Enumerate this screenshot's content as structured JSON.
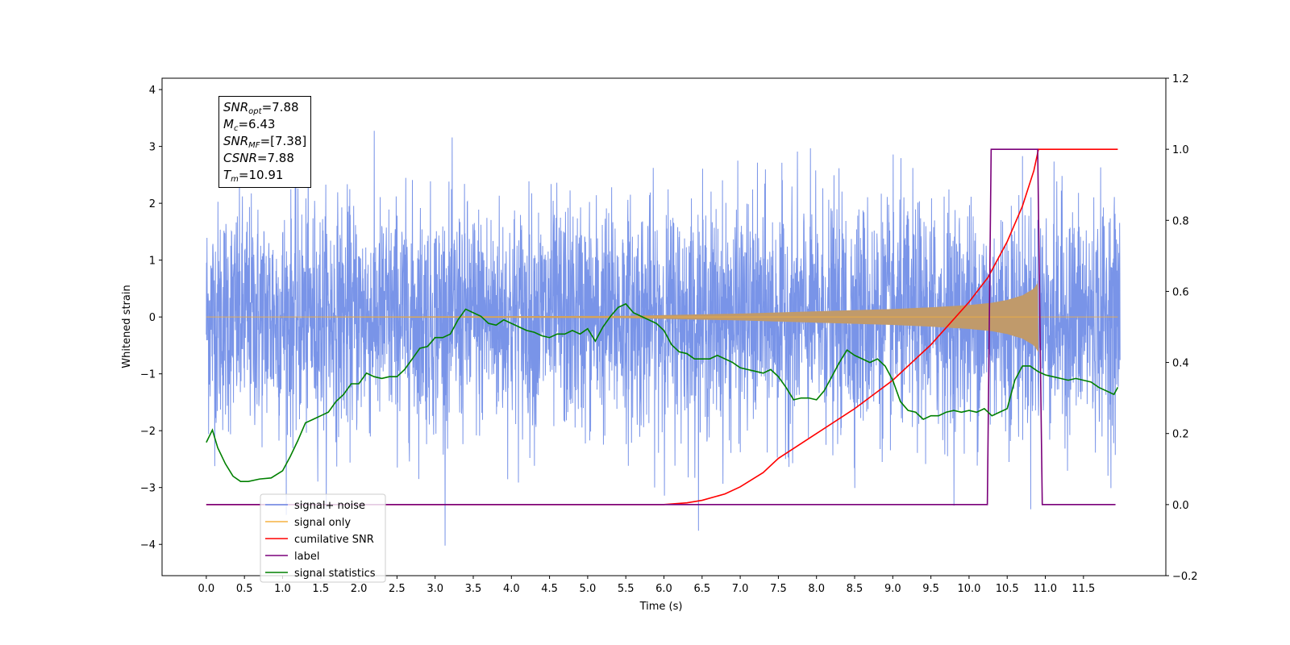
{
  "chart_data": {
    "type": "line",
    "xlabel": "Time (s)",
    "ylabel": "Whitened strain",
    "xlim": [
      -0.58,
      12.58
    ],
    "ylim": [
      -4.55,
      4.2
    ],
    "y2lim": [
      -0.2,
      1.2
    ],
    "x_ticks": [
      "0.0",
      "0.5",
      "1.0",
      "1.5",
      "2.0",
      "2.5",
      "3.0",
      "3.5",
      "4.0",
      "4.5",
      "5.0",
      "5.5",
      "6.0",
      "6.5",
      "7.0",
      "7.5",
      "8.0",
      "8.5",
      "9.0",
      "9.5",
      "10.0",
      "10.5",
      "11.0",
      "11.5"
    ],
    "y_ticks": [
      "4",
      "3",
      "2",
      "1",
      "0",
      "−1",
      "−2",
      "−3",
      "−4"
    ],
    "y2_ticks": [
      "1.2",
      "1.0",
      "0.8",
      "0.6",
      "0.4",
      "0.2",
      "0.0",
      "−0.2"
    ],
    "grid": false,
    "legend_position": "lower-left",
    "annotation": {
      "snr_opt_label": "SNR",
      "snr_opt_sub": "opt",
      "snr_opt_value": "=7.88",
      "mc_label": "M",
      "mc_sub": "c",
      "mc_value": "=6.43",
      "snr_mf_label": "SNR",
      "snr_mf_sub": "MF",
      "snr_mf_value": "=[7.38]",
      "csnr_label": "CSNR",
      "csnr_value": "=7.88",
      "tm_label": "T",
      "tm_sub": "m",
      "tm_value": "=10.91"
    },
    "series": [
      {
        "name": "signal+ noise",
        "axis": "left",
        "color": "#6a88e6",
        "description_values": "white noise, std 1.0, 0–12 s"
      },
      {
        "name": "signal only",
        "axis": "left",
        "color": "#f5b240",
        "envelope": {
          "x": [
            0,
            5.5,
            7.0,
            8.0,
            9.0,
            9.5,
            10.0,
            10.3,
            10.5,
            10.7,
            10.85,
            10.91
          ],
          "amp": [
            0.0,
            0.02,
            0.06,
            0.1,
            0.14,
            0.17,
            0.21,
            0.25,
            0.3,
            0.38,
            0.5,
            0.62
          ]
        }
      },
      {
        "name": "cumilative SNR",
        "axis": "right",
        "color": "#ff0000",
        "x": [
          0,
          6.0,
          6.3,
          6.5,
          6.8,
          7.0,
          7.3,
          7.5,
          8.0,
          8.5,
          9.0,
          9.5,
          10.0,
          10.25,
          10.5,
          10.7,
          10.85,
          10.91,
          11.0,
          11.95
        ],
        "values": [
          0,
          0,
          0.005,
          0.012,
          0.03,
          0.05,
          0.09,
          0.13,
          0.2,
          0.27,
          0.35,
          0.45,
          0.57,
          0.64,
          0.74,
          0.84,
          0.94,
          1.0,
          1.0,
          1.0
        ]
      },
      {
        "name": "label",
        "axis": "right",
        "color": "#7a007a",
        "x": [
          0,
          10.24,
          10.29,
          10.9,
          10.96,
          11.92
        ],
        "values": [
          0,
          0,
          1.0,
          1.0,
          0,
          0
        ]
      },
      {
        "name": "signal statistics",
        "axis": "right",
        "color": "#008000",
        "x": [
          0,
          0.08,
          0.15,
          0.25,
          0.35,
          0.45,
          0.55,
          0.7,
          0.85,
          1.0,
          1.1,
          1.2,
          1.3,
          1.4,
          1.5,
          1.6,
          1.7,
          1.8,
          1.9,
          2.0,
          2.1,
          2.2,
          2.3,
          2.4,
          2.5,
          2.6,
          2.7,
          2.8,
          2.9,
          3.0,
          3.1,
          3.2,
          3.3,
          3.4,
          3.5,
          3.6,
          3.7,
          3.8,
          3.9,
          4.0,
          4.1,
          4.2,
          4.3,
          4.4,
          4.5,
          4.6,
          4.7,
          4.8,
          4.9,
          5.0,
          5.1,
          5.2,
          5.3,
          5.4,
          5.5,
          5.6,
          5.7,
          5.8,
          5.9,
          6.0,
          6.1,
          6.2,
          6.3,
          6.4,
          6.5,
          6.6,
          6.7,
          6.8,
          6.9,
          7.0,
          7.1,
          7.2,
          7.3,
          7.4,
          7.5,
          7.6,
          7.7,
          7.8,
          7.9,
          8.0,
          8.1,
          8.2,
          8.3,
          8.4,
          8.5,
          8.6,
          8.7,
          8.8,
          8.9,
          9.0,
          9.1,
          9.2,
          9.3,
          9.4,
          9.5,
          9.6,
          9.7,
          9.8,
          9.9,
          10.0,
          10.1,
          10.2,
          10.3,
          10.4,
          10.5,
          10.6,
          10.7,
          10.8,
          10.9,
          11.0,
          11.1,
          11.2,
          11.3,
          11.4,
          11.5,
          11.6,
          11.7,
          11.8,
          11.9,
          11.95
        ],
        "values": [
          0.175,
          0.21,
          0.16,
          0.115,
          0.08,
          0.065,
          0.065,
          0.072,
          0.075,
          0.095,
          0.135,
          0.18,
          0.23,
          0.24,
          0.25,
          0.26,
          0.29,
          0.31,
          0.34,
          0.34,
          0.37,
          0.36,
          0.355,
          0.36,
          0.36,
          0.38,
          0.41,
          0.44,
          0.445,
          0.47,
          0.47,
          0.48,
          0.52,
          0.55,
          0.54,
          0.53,
          0.51,
          0.505,
          0.52,
          0.51,
          0.5,
          0.49,
          0.485,
          0.475,
          0.47,
          0.48,
          0.48,
          0.49,
          0.48,
          0.495,
          0.46,
          0.5,
          0.53,
          0.555,
          0.565,
          0.54,
          0.53,
          0.52,
          0.51,
          0.49,
          0.45,
          0.43,
          0.425,
          0.41,
          0.41,
          0.41,
          0.42,
          0.41,
          0.4,
          0.385,
          0.38,
          0.375,
          0.37,
          0.38,
          0.36,
          0.33,
          0.295,
          0.3,
          0.3,
          0.295,
          0.32,
          0.36,
          0.4,
          0.435,
          0.42,
          0.41,
          0.4,
          0.41,
          0.39,
          0.35,
          0.29,
          0.265,
          0.26,
          0.24,
          0.25,
          0.25,
          0.26,
          0.265,
          0.26,
          0.265,
          0.26,
          0.27,
          0.25,
          0.26,
          0.27,
          0.35,
          0.39,
          0.39,
          0.375,
          0.365,
          0.36,
          0.355,
          0.35,
          0.355,
          0.35,
          0.345,
          0.33,
          0.32,
          0.31,
          0.33
        ]
      }
    ]
  }
}
